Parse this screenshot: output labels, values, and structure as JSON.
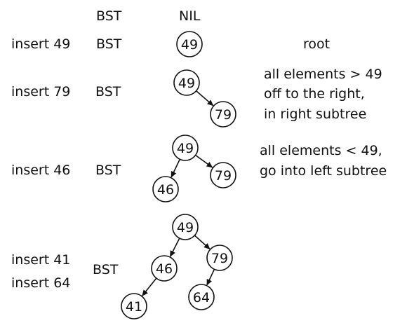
{
  "headers": {
    "bst": "BST",
    "nil": "NIL"
  },
  "steps": [
    {
      "action": "insert 49",
      "type": "BST",
      "notes": [
        "root"
      ]
    },
    {
      "action": "insert 79",
      "type": "BST",
      "notes": [
        "all elements > 49",
        "off to the right,",
        "in right subtree"
      ]
    },
    {
      "action": "insert 46",
      "type": "BST",
      "notes": [
        "all elements < 49,",
        "go into left subtree"
      ]
    },
    {
      "action_lines": [
        "insert 41",
        "insert 64"
      ],
      "type": "BST",
      "notes": []
    }
  ],
  "trees": [
    {
      "nodes": [
        "49"
      ],
      "edges": []
    },
    {
      "nodes": [
        "49",
        "79"
      ],
      "edges": [
        [
          "49",
          "79"
        ]
      ]
    },
    {
      "nodes": [
        "49",
        "46",
        "79"
      ],
      "edges": [
        [
          "49",
          "46"
        ],
        [
          "49",
          "79"
        ]
      ]
    },
    {
      "nodes": [
        "49",
        "46",
        "79",
        "41",
        "64"
      ],
      "edges": [
        [
          "49",
          "46"
        ],
        [
          "49",
          "79"
        ],
        [
          "46",
          "41"
        ],
        [
          "79",
          "64"
        ]
      ]
    }
  ]
}
